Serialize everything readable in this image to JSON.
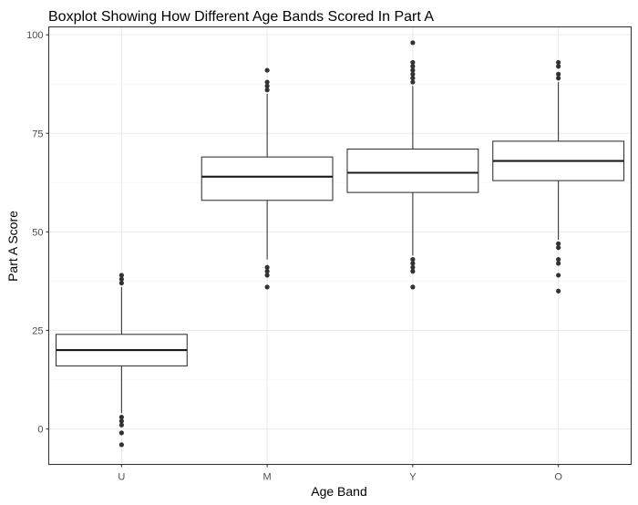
{
  "chart_data": {
    "type": "boxplot",
    "title": "Boxplot Showing How Different Age Bands Scored In Part A",
    "xlabel": "Age Band",
    "ylabel": "Part A Score",
    "ylim": [
      -9,
      102
    ],
    "yticks": [
      0,
      25,
      50,
      75,
      100
    ],
    "yminor": [
      12.5,
      37.5,
      62.5,
      87.5
    ],
    "grid": true,
    "theme": "bw",
    "categories": [
      "U",
      "M",
      "Y",
      "O"
    ],
    "boxes": [
      {
        "category": "U",
        "lower_whisker": 4,
        "q1": 16,
        "median": 20,
        "q3": 24,
        "upper_whisker": 36,
        "outliers": [
          37,
          38,
          39,
          3,
          2,
          1,
          -1,
          -4
        ]
      },
      {
        "category": "M",
        "lower_whisker": 43,
        "q1": 58,
        "median": 64,
        "q3": 69,
        "upper_whisker": 85,
        "outliers": [
          86,
          87,
          88,
          91,
          41,
          40,
          39,
          36
        ]
      },
      {
        "category": "Y",
        "lower_whisker": 44,
        "q1": 60,
        "median": 65,
        "q3": 71,
        "upper_whisker": 87,
        "outliers": [
          88,
          89,
          90,
          91,
          92,
          93,
          98,
          43,
          42,
          41,
          40,
          36
        ]
      },
      {
        "category": "O",
        "lower_whisker": 48,
        "q1": 63,
        "median": 68,
        "q3": 73,
        "upper_whisker": 88,
        "outliers": [
          89,
          90,
          92,
          93,
          47,
          46,
          43,
          42,
          39,
          35
        ]
      }
    ]
  }
}
